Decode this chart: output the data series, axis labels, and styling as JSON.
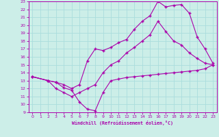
{
  "xlabel": "Windchill (Refroidissement éolien,°C)",
  "bg_color": "#cceee8",
  "grid_color": "#aadddd",
  "line_color": "#aa00aa",
  "xlim": [
    -0.5,
    23.5
  ],
  "ylim": [
    9,
    23
  ],
  "xticks": [
    0,
    1,
    2,
    3,
    4,
    5,
    6,
    7,
    8,
    9,
    10,
    11,
    12,
    13,
    14,
    15,
    16,
    17,
    18,
    19,
    20,
    21,
    22,
    23
  ],
  "yticks": [
    9,
    10,
    11,
    12,
    13,
    14,
    15,
    16,
    17,
    18,
    19,
    20,
    21,
    22,
    23
  ],
  "line1_x": [
    0,
    2,
    3,
    4,
    5,
    6,
    7,
    8,
    9,
    10,
    11,
    12,
    13,
    14,
    15,
    16,
    17,
    18,
    19,
    20,
    21,
    22,
    23
  ],
  "line1_y": [
    13.5,
    13.0,
    12.8,
    12.1,
    11.8,
    10.3,
    9.4,
    9.2,
    11.5,
    13.0,
    13.2,
    13.4,
    13.5,
    13.6,
    13.7,
    13.8,
    13.9,
    14.0,
    14.1,
    14.2,
    14.3,
    14.5,
    15.0
  ],
  "line2_x": [
    0,
    2,
    3,
    4,
    5,
    6,
    7,
    8,
    9,
    10,
    11,
    12,
    13,
    14,
    15,
    16,
    17,
    18,
    19,
    20,
    21,
    22,
    23
  ],
  "line2_y": [
    13.5,
    13.0,
    12.8,
    12.5,
    12.0,
    12.5,
    15.5,
    17.0,
    16.8,
    17.2,
    17.8,
    18.2,
    19.5,
    20.5,
    21.2,
    23.0,
    22.3,
    22.5,
    22.6,
    21.5,
    18.5,
    17.0,
    15.2
  ],
  "line3_x": [
    0,
    2,
    3,
    4,
    5,
    6,
    7,
    8,
    9,
    10,
    11,
    12,
    13,
    14,
    15,
    16,
    17,
    18,
    19,
    20,
    21,
    22,
    23
  ],
  "line3_y": [
    13.5,
    13.0,
    12.0,
    11.5,
    11.0,
    11.5,
    12.0,
    12.5,
    14.0,
    15.0,
    15.5,
    16.5,
    17.2,
    18.0,
    18.8,
    20.5,
    19.2,
    18.0,
    17.5,
    16.5,
    15.8,
    15.2,
    15.0
  ]
}
